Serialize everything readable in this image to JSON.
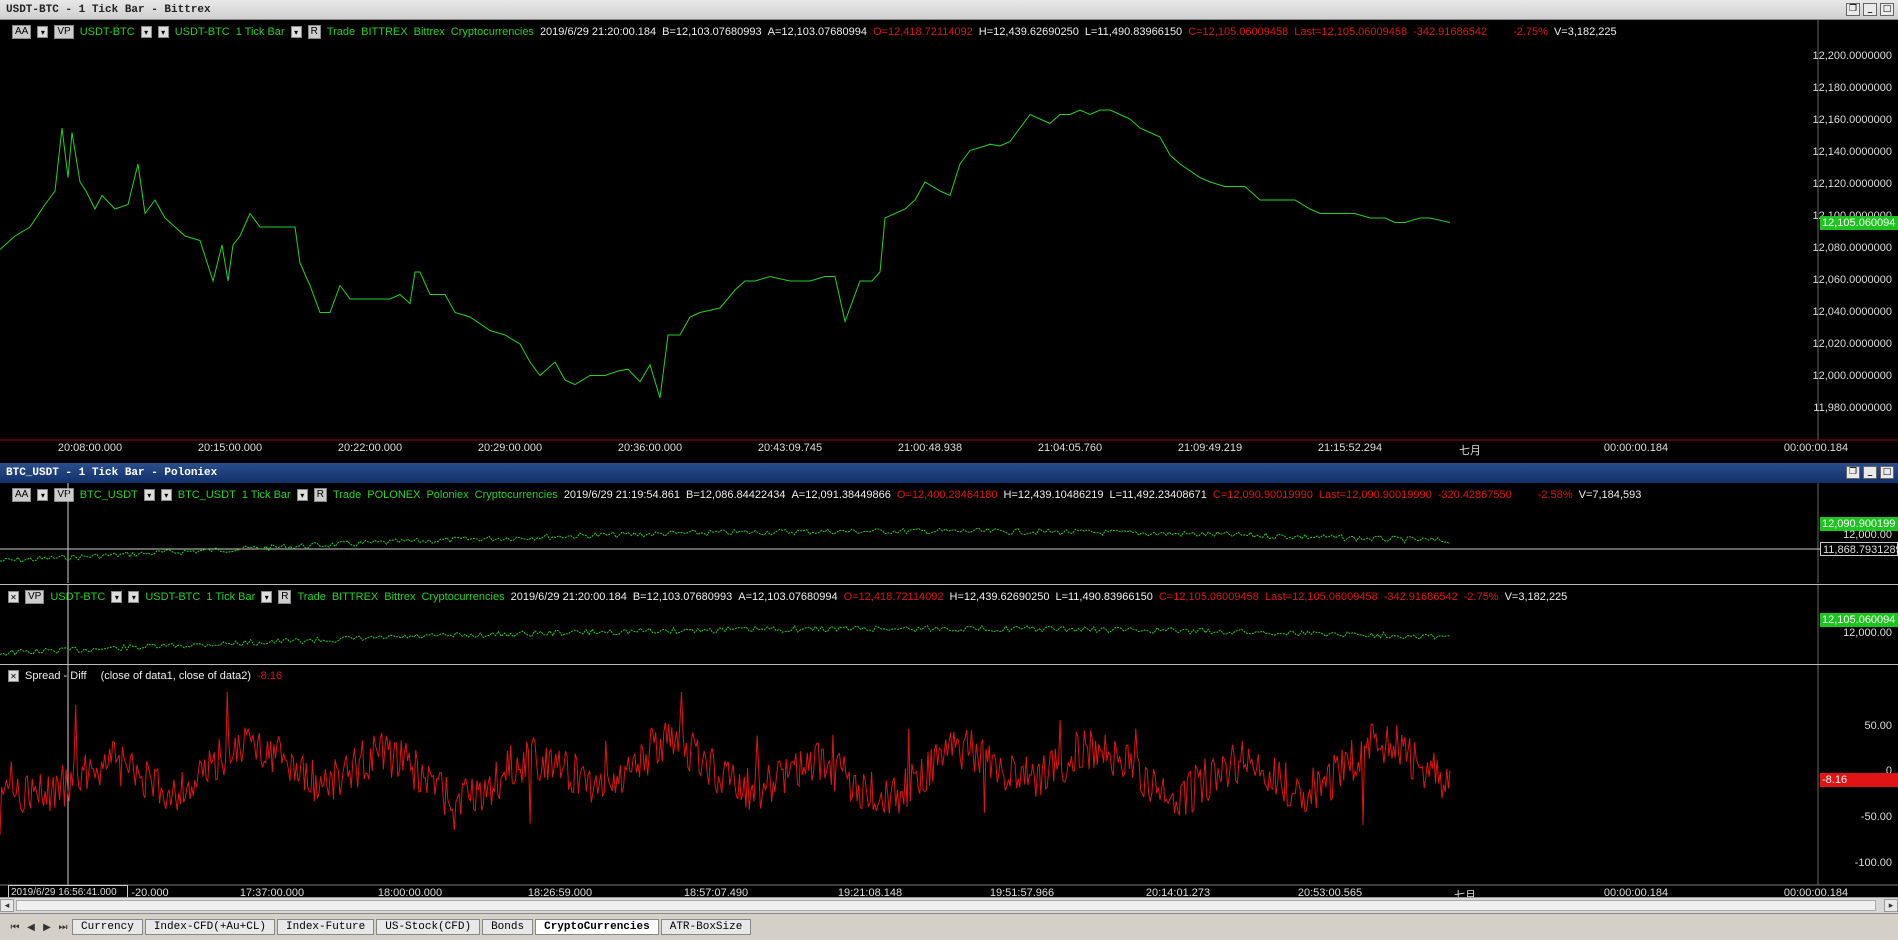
{
  "window1": {
    "title": "USDT-BTC - 1 Tick Bar - Bittrex",
    "info": {
      "aa": "AA",
      "vp": "VP",
      "symbol": "USDT-BTC",
      "symbol2": "USDT-BTC",
      "interval": "1 Tick Bar",
      "r": "R",
      "trade": "Trade",
      "exchange": "BITTREX",
      "exchange2": "Bittrex",
      "category": "Cryptocurrencies",
      "datetime": "2019/6/29  21:20:00.184",
      "bid": "B=12,103.07680993",
      "ask": "A=12,103.07680994",
      "open": "O=12,418.72114092",
      "high": "H=12,439.62690250",
      "low": "L=11,490.83966150",
      "close": "C=12,105.06009458",
      "last": "Last=12,105.06009458",
      "change": "-342.91686542",
      "pct": "-2.75%",
      "vol": "V=3,182,225"
    },
    "yticks": [
      "12,200.0000000",
      "12,180.0000000",
      "12,160.0000000",
      "12,140.0000000",
      "12,120.0000000",
      "12,100.0000000",
      "12,080.0000000",
      "12,060.0000000",
      "12,040.0000000",
      "12,020.0000000",
      "12,000.0000000",
      "11,980.0000000"
    ],
    "last_badge": "12,105.060094",
    "xticks": [
      "20:08:00.000",
      "20:15:00.000",
      "20:22:00.000",
      "20:29:00.000",
      "20:36:00.000",
      "20:43:09.745",
      "21:00:48.938",
      "21:04:05.760",
      "21:09:49.219",
      "21:15:52.294",
      "七月",
      "00:00:00.184",
      "00:00:00.184"
    ]
  },
  "window2": {
    "title": "BTC_USDT - 1 Tick Bar - Poloniex",
    "data1": {
      "aa": "AA",
      "vp": "VP",
      "symbol": "BTC_USDT",
      "symbol2": "BTC_USDT",
      "interval": "1 Tick Bar",
      "r": "R",
      "trade": "Trade",
      "exchange": "POLONEX",
      "exchange2": "Poloniex",
      "category": "Cryptocurrencies",
      "datetime": "2019/6/29  21:19:54.861",
      "bid": "B=12,086.84422434",
      "ask": "A=12,091.38449866",
      "open": "O=12,400.28464180",
      "high": "H=12,439.10486219",
      "low": "L=11,492.23408671",
      "close": "C=12,090.90019990",
      "last": "Last=12,090.90019990",
      "change": "-320.42867550",
      "pct": "-2.58%",
      "vol": "V=7,184,593",
      "badge_last": "12,090.900199",
      "badge_tick": "12,000.00",
      "badge_cursor": "11,868.7931289"
    },
    "data2": {
      "x": "✕",
      "vp": "VP",
      "symbol": "USDT-BTC",
      "symbol2": "USDT-BTC",
      "interval": "1 Tick Bar",
      "r": "R",
      "trade": "Trade",
      "exchange": "BITTREX",
      "exchange2": "Bittrex",
      "category": "Cryptocurrencies",
      "datetime": "2019/6/29  21:20:00.184",
      "bid": "B=12,103.07680993",
      "ask": "A=12,103.07680994",
      "open": "O=12,418.72114092",
      "high": "H=12,439.62690250",
      "low": "L=11,490.83966150",
      "close": "C=12,105.06009458",
      "last": "Last=12,105.06009458",
      "change": "-342.91686542",
      "pct": "-2.75%",
      "vol": "V=3,182,225",
      "badge_last": "12,105.060094",
      "badge_tick": "12,000.00"
    },
    "spread": {
      "x": "✕",
      "name": "Spread - Diff",
      "params": "(close of data1,  close of data2)",
      "value": "-8.16",
      "yticks": [
        "50.00",
        "0",
        "-50.00",
        "-100.00"
      ],
      "badge": "-8.16"
    },
    "cursor_date": "2019/6/29 16:56:41.000",
    "xticks": [
      "-20.000",
      "17:37:00.000",
      "18:00:00.000",
      "18:26:59.000",
      "18:57:07.490",
      "19:21:08.148",
      "19:51:57.966",
      "20:14:01.273",
      "20:53:00.565",
      "七月",
      "00:00:00.184",
      "00:00:00.184"
    ]
  },
  "tabs": [
    "Currency",
    "Index-CFD(+Au+CL)",
    "Index-Future",
    "US-Stock(CFD)",
    "Bonds",
    "CryptoCurrencies",
    "ATR-BoxSize"
  ],
  "active_tab": "CryptoCurrencies",
  "colors": {
    "up": "#22d422",
    "down": "#e01414",
    "background": "#000000"
  }
}
